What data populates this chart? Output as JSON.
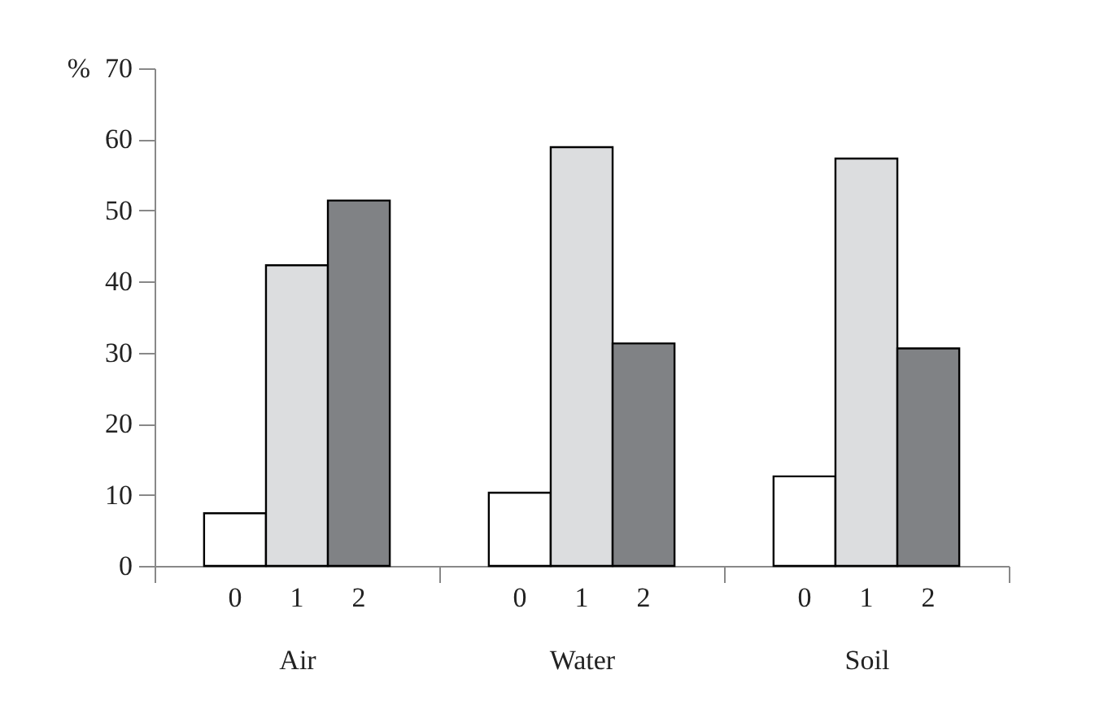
{
  "chart_data": {
    "type": "bar",
    "ylabel": "%",
    "categories": [
      "Air",
      "Water",
      "Soil"
    ],
    "series": [
      {
        "name": "0",
        "color": "#ffffff",
        "values": [
          7.4,
          10.3,
          12.6
        ]
      },
      {
        "name": "1",
        "color": "#dcdddf",
        "values": [
          42.3,
          58.9,
          57.3
        ]
      },
      {
        "name": "2",
        "color": "#808285",
        "values": [
          51.4,
          31.3,
          30.6
        ]
      }
    ],
    "ylim": [
      0,
      70
    ],
    "yticks": [
      0,
      10,
      20,
      30,
      40,
      50,
      60,
      70
    ]
  }
}
